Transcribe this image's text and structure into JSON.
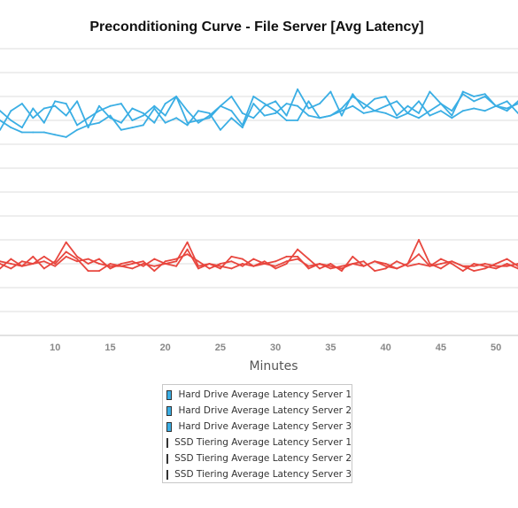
{
  "chart_data": {
    "type": "line",
    "title": "Preconditioning Curve - File Server [Avg Latency]",
    "xlabel": "Minutes",
    "ylabel": "",
    "x": [
      5,
      6,
      7,
      8,
      9,
      10,
      11,
      12,
      13,
      14,
      15,
      16,
      17,
      18,
      19,
      20,
      21,
      22,
      23,
      24,
      25,
      26,
      27,
      28,
      29,
      30,
      31,
      32,
      33,
      34,
      35,
      36,
      37,
      38,
      39,
      40,
      41,
      42,
      43,
      44,
      45,
      46,
      47,
      48,
      49,
      50,
      51,
      52
    ],
    "xlim": [
      5,
      52
    ],
    "ylim": [
      0,
      12
    ],
    "xticks": [
      10,
      15,
      20,
      25,
      30,
      35,
      40,
      45,
      50
    ],
    "grid": true,
    "legend_position": "bottom",
    "series": [
      {
        "name": "Hard Drive Average Latency Server 1",
        "color": "#3aaee4",
        "values": [
          8.6,
          9.4,
          9.7,
          9.1,
          9.5,
          9.6,
          9.2,
          9.8,
          8.7,
          9.6,
          9.1,
          8.9,
          9.5,
          9.3,
          8.9,
          9.7,
          10.0,
          9.4,
          8.9,
          9.2,
          9.6,
          10.0,
          9.3,
          9.1,
          9.6,
          9.8,
          9.2,
          10.3,
          9.5,
          9.7,
          10.2,
          9.2,
          10.1,
          9.5,
          9.9,
          10.0,
          9.2,
          9.6,
          9.3,
          10.2,
          9.7,
          9.4,
          10.1,
          9.8,
          10.0,
          9.6,
          9.8,
          9.3
        ]
      },
      {
        "name": "Hard Drive Average Latency Server 2",
        "color": "#3aaee4",
        "values": [
          9.4,
          9.0,
          8.7,
          9.5,
          8.9,
          9.8,
          9.7,
          8.8,
          9.1,
          9.4,
          9.6,
          9.7,
          9.0,
          9.2,
          9.6,
          9.2,
          10.0,
          8.9,
          9.0,
          9.1,
          9.6,
          9.4,
          8.8,
          10.0,
          9.7,
          9.4,
          9.0,
          9.0,
          9.8,
          9.1,
          9.2,
          9.5,
          10.0,
          9.7,
          9.4,
          9.6,
          9.8,
          9.3,
          9.1,
          9.4,
          9.7,
          9.2,
          10.2,
          10.0,
          10.1,
          9.6,
          9.4,
          9.8
        ]
      },
      {
        "name": "Hard Drive Average Latency Server 3",
        "color": "#3aaee4",
        "values": [
          9.0,
          8.7,
          8.5,
          8.5,
          8.5,
          8.4,
          8.3,
          8.6,
          8.8,
          8.9,
          9.2,
          8.6,
          8.7,
          8.8,
          9.5,
          8.9,
          9.1,
          8.8,
          9.4,
          9.3,
          8.6,
          9.1,
          8.7,
          9.7,
          9.2,
          9.3,
          9.7,
          9.6,
          9.2,
          9.1,
          9.2,
          9.4,
          9.6,
          9.3,
          9.4,
          9.3,
          9.1,
          9.3,
          9.8,
          9.2,
          9.4,
          9.1,
          9.4,
          9.5,
          9.4,
          9.6,
          9.5,
          9.7
        ]
      },
      {
        "name": "SSD Tiering Average Latency Server 1",
        "color": "#e8473f",
        "values": [
          2.8,
          3.2,
          2.9,
          3.3,
          2.8,
          3.1,
          3.9,
          3.3,
          3.0,
          3.2,
          2.8,
          3.0,
          3.1,
          2.9,
          3.2,
          3.0,
          3.1,
          3.9,
          2.9,
          3.0,
          2.8,
          3.3,
          3.2,
          2.9,
          3.1,
          2.8,
          3.0,
          3.6,
          3.2,
          2.8,
          3.0,
          2.7,
          3.3,
          2.9,
          3.1,
          3.0,
          2.8,
          3.0,
          4.0,
          3.0,
          2.8,
          3.1,
          2.9,
          2.7,
          2.8,
          3.0,
          3.2,
          2.9
        ]
      },
      {
        "name": "SSD Tiering Average Latency Server 2",
        "color": "#e8473f",
        "values": [
          3.0,
          2.8,
          3.1,
          3.0,
          3.3,
          3.0,
          3.5,
          3.2,
          2.7,
          2.7,
          3.0,
          2.9,
          3.0,
          3.1,
          2.7,
          3.1,
          3.2,
          3.4,
          3.1,
          2.8,
          3.0,
          3.1,
          2.9,
          3.2,
          3.0,
          3.1,
          3.3,
          3.3,
          2.8,
          3.0,
          2.8,
          2.9,
          3.0,
          3.1,
          2.7,
          2.8,
          3.1,
          2.9,
          3.0,
          2.9,
          3.2,
          3.0,
          2.7,
          3.0,
          2.9,
          2.8,
          3.0,
          2.8
        ]
      },
      {
        "name": "SSD Tiering Average Latency Server 3",
        "color": "#e8473f",
        "values": [
          3.1,
          3.0,
          2.9,
          3.0,
          3.1,
          2.9,
          3.3,
          3.1,
          3.2,
          3.0,
          2.9,
          2.9,
          2.8,
          3.0,
          2.9,
          3.0,
          2.9,
          3.6,
          2.8,
          3.0,
          2.9,
          2.8,
          3.0,
          2.9,
          3.0,
          2.9,
          3.1,
          3.2,
          2.9,
          3.0,
          2.9,
          2.8,
          3.0,
          2.9,
          3.1,
          2.9,
          2.8,
          3.0,
          3.4,
          2.9,
          3.0,
          3.1,
          2.9,
          2.9,
          3.0,
          2.9,
          2.9,
          3.0
        ]
      }
    ]
  }
}
